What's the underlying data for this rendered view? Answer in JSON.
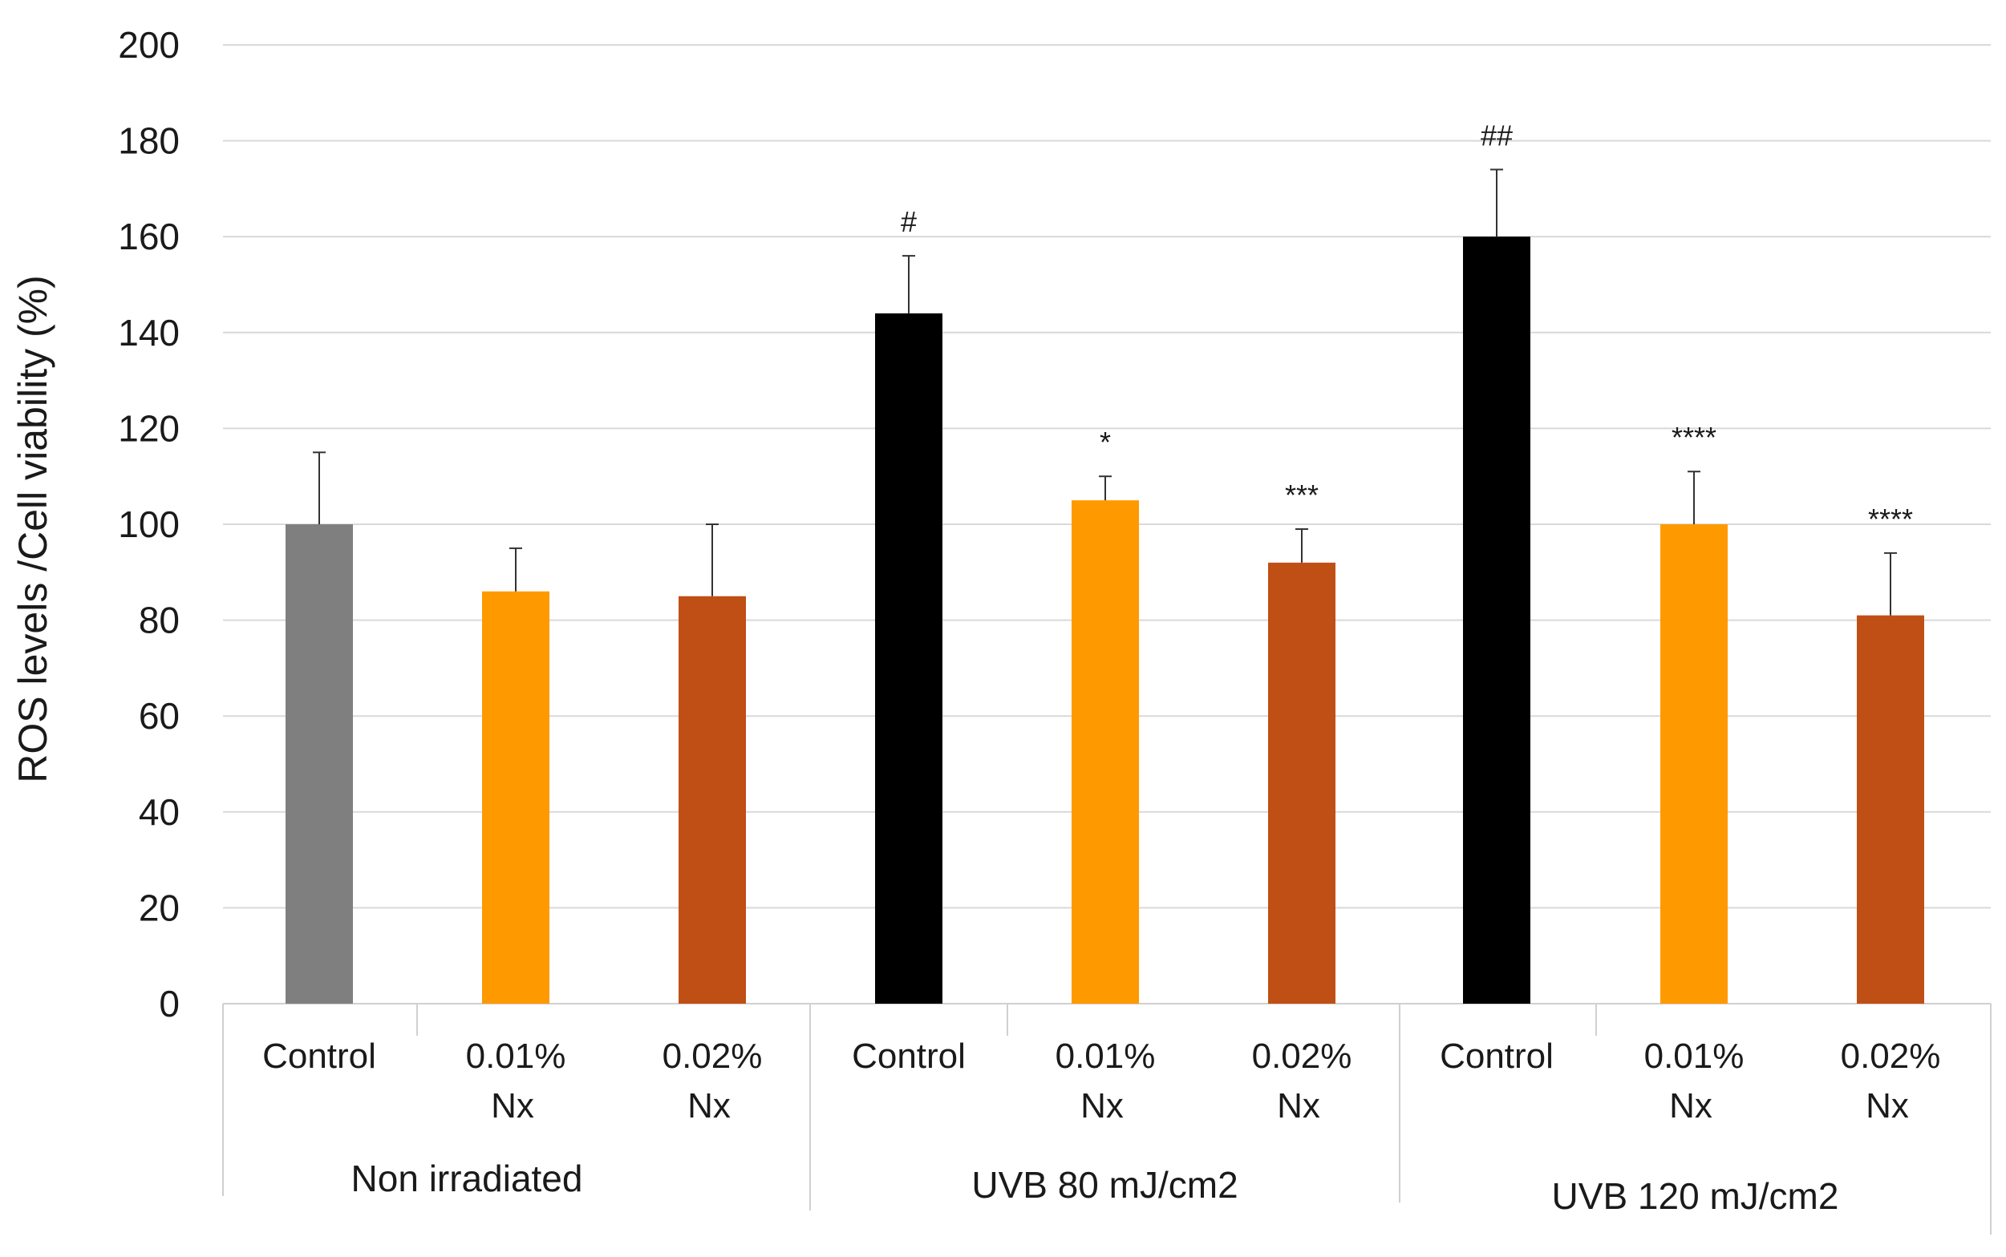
{
  "chart_data": {
    "type": "bar",
    "title": "",
    "xlabel": "",
    "ylabel": "ROS levels /Cell viability (%)",
    "ylim": [
      0,
      200
    ],
    "yticks": [
      0,
      20,
      40,
      60,
      80,
      100,
      120,
      140,
      160,
      180,
      200
    ],
    "grid": true,
    "groups": [
      {
        "label": "Non irradiated",
        "bars": [
          {
            "label_line1": "Control",
            "label_line2": "",
            "value": 100,
            "error": 15,
            "color": "#7f7f7f",
            "sig": ""
          },
          {
            "label_line1": "0.01%",
            "label_line2": "Nx",
            "value": 86,
            "error": 9,
            "color": "#ff9900",
            "sig": ""
          },
          {
            "label_line1": "0.02%",
            "label_line2": "Nx",
            "value": 85,
            "error": 15,
            "color": "#c04f15",
            "sig": ""
          }
        ]
      },
      {
        "label": "UVB  80 mJ/cm2",
        "bars": [
          {
            "label_line1": "Control",
            "label_line2": "",
            "value": 144,
            "error": 12,
            "color": "#000000",
            "sig": "#"
          },
          {
            "label_line1": "0.01%",
            "label_line2": "Nx",
            "value": 105,
            "error": 5,
            "color": "#ff9900",
            "sig": "*"
          },
          {
            "label_line1": "0.02%",
            "label_line2": "Nx",
            "value": 92,
            "error": 7,
            "color": "#c04f15",
            "sig": "***"
          }
        ]
      },
      {
        "label": "UVB  120 mJ/cm2",
        "bars": [
          {
            "label_line1": "Control",
            "label_line2": "",
            "value": 160,
            "error": 14,
            "color": "#000000",
            "sig": "##"
          },
          {
            "label_line1": "0.01%",
            "label_line2": "Nx",
            "value": 100,
            "error": 11,
            "color": "#ff9900",
            "sig": "****"
          },
          {
            "label_line1": "0.02%",
            "label_line2": "Nx",
            "value": 81,
            "error": 13,
            "color": "#c04f15",
            "sig": "****"
          }
        ]
      }
    ]
  }
}
